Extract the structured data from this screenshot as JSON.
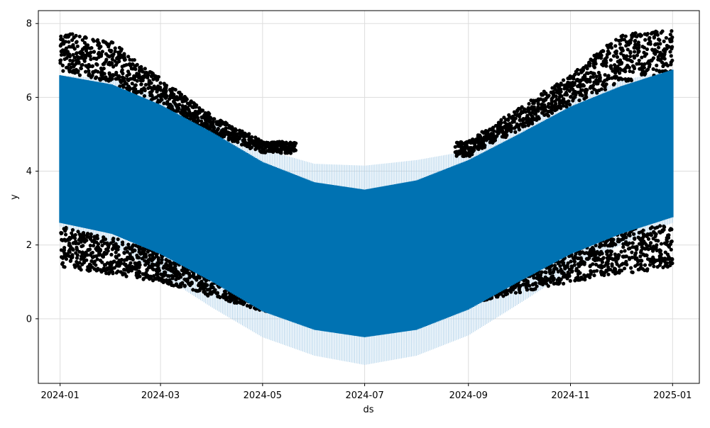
{
  "chart_data": {
    "type": "line",
    "title": "",
    "xlabel": "ds",
    "ylabel": "y",
    "x_range": [
      "2023-12-19",
      "2025-01-17"
    ],
    "ylim": [
      -1.75,
      8.35
    ],
    "grid": true,
    "legend": "none",
    "x_ticks": [
      "2024-01",
      "2024-03",
      "2024-05",
      "2024-07",
      "2024-09",
      "2024-11",
      "2025-01"
    ],
    "y_ticks": [
      0,
      2,
      4,
      6,
      8
    ],
    "colors": {
      "forecast": "#0072b2",
      "interval": "#a9cde8",
      "observed": "#000000",
      "grid": "#dddddd"
    },
    "data_start": "2024-01-01",
    "data_end": "2025-01-01",
    "daily_oscillation": "yhat swings between lower and upper envelope each day",
    "series": [
      {
        "name": "yhat",
        "points": [
          {
            "x": "2024-01-01",
            "lower": 2.6,
            "upper": 6.6
          },
          {
            "x": "2024-02-01",
            "lower": 2.3,
            "upper": 6.35
          },
          {
            "x": "2024-03-01",
            "lower": 1.75,
            "upper": 5.8
          },
          {
            "x": "2024-04-01",
            "lower": 1.0,
            "upper": 5.05
          },
          {
            "x": "2024-05-01",
            "lower": 0.2,
            "upper": 4.25
          },
          {
            "x": "2024-06-01",
            "lower": -0.3,
            "upper": 3.7
          },
          {
            "x": "2024-07-01",
            "lower": -0.5,
            "upper": 3.5
          },
          {
            "x": "2024-08-01",
            "lower": -0.3,
            "upper": 3.75
          },
          {
            "x": "2024-09-01",
            "lower": 0.25,
            "upper": 4.3
          },
          {
            "x": "2024-10-01",
            "lower": 1.0,
            "upper": 5.0
          },
          {
            "x": "2024-11-01",
            "lower": 1.75,
            "upper": 5.75
          },
          {
            "x": "2024-12-01",
            "lower": 2.3,
            "upper": 6.3
          },
          {
            "x": "2025-01-01",
            "lower": 2.75,
            "upper": 6.75
          }
        ]
      },
      {
        "name": "uncertainty interval",
        "points": [
          {
            "x": "2024-01-01",
            "lower": 2.5,
            "upper": 6.6
          },
          {
            "x": "2024-02-01",
            "lower": 2.0,
            "upper": 6.5
          },
          {
            "x": "2024-03-01",
            "lower": 1.2,
            "upper": 6.0
          },
          {
            "x": "2024-04-01",
            "lower": 0.3,
            "upper": 5.3
          },
          {
            "x": "2024-05-01",
            "lower": -0.5,
            "upper": 4.6
          },
          {
            "x": "2024-06-01",
            "lower": -1.0,
            "upper": 4.2
          },
          {
            "x": "2024-07-01",
            "lower": -1.25,
            "upper": 4.15
          },
          {
            "x": "2024-08-01",
            "lower": -1.0,
            "upper": 4.3
          },
          {
            "x": "2024-09-01",
            "lower": -0.45,
            "upper": 4.55
          },
          {
            "x": "2024-10-01",
            "lower": 0.4,
            "upper": 5.3
          },
          {
            "x": "2024-11-01",
            "lower": 1.3,
            "upper": 5.9
          },
          {
            "x": "2024-12-01",
            "lower": 2.0,
            "upper": 6.45
          },
          {
            "x": "2025-01-01",
            "lower": 2.6,
            "upper": 6.75
          }
        ]
      },
      {
        "name": "observed",
        "points": [
          {
            "x": "2024-01-01",
            "high_min": 6.7,
            "high_max": 7.8,
            "low_min": 1.4,
            "low_max": 2.5
          },
          {
            "x": "2024-02-01",
            "high_min": 6.4,
            "high_max": 7.5,
            "low_min": 1.2,
            "low_max": 2.2
          },
          {
            "x": "2024-03-01",
            "high_min": 5.8,
            "high_max": 6.5,
            "low_min": 1.0,
            "low_max": 1.8
          },
          {
            "x": "2024-04-01",
            "high_min": 5.0,
            "high_max": 5.5,
            "low_min": 0.6,
            "low_max": 1.2
          },
          {
            "x": "2024-05-01",
            "high_min": 4.5,
            "high_max": 4.8,
            "low_min": 0.2,
            "low_max": 0.7
          },
          {
            "x": "2024-09-01",
            "high_min": 4.4,
            "high_max": 4.8,
            "low_min": 0.4,
            "low_max": 0.8
          },
          {
            "x": "2024-10-01",
            "high_min": 5.1,
            "high_max": 5.7,
            "low_min": 0.7,
            "low_max": 1.3
          },
          {
            "x": "2024-11-01",
            "high_min": 5.8,
            "high_max": 6.6,
            "low_min": 1.0,
            "low_max": 1.9
          },
          {
            "x": "2024-12-01",
            "high_min": 6.4,
            "high_max": 7.7,
            "low_min": 1.2,
            "low_max": 2.4
          },
          {
            "x": "2025-01-01",
            "high_min": 6.7,
            "high_max": 7.85,
            "low_min": 1.4,
            "low_max": 2.6
          }
        ]
      }
    ]
  }
}
